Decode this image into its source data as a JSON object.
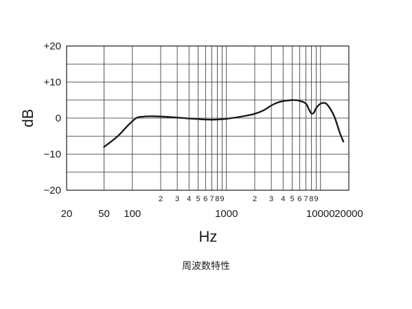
{
  "chart_data": {
    "type": "line",
    "x_scale": "log",
    "xlim": [
      20,
      20000
    ],
    "ylim": [
      -20,
      20
    ],
    "ylabel": "dB",
    "xlabel": "Hz",
    "caption": "周波数特性",
    "grid": true,
    "y_ticks": [
      {
        "value": 20,
        "label": "+20"
      },
      {
        "value": 10,
        "label": "+10"
      },
      {
        "value": 0,
        "label": "0"
      },
      {
        "value": -10,
        "label": "−10"
      },
      {
        "value": -20,
        "label": "−20"
      }
    ],
    "x_major_ticks": [
      {
        "value": 20,
        "label": "20"
      },
      {
        "value": 50,
        "label": "50"
      },
      {
        "value": 100,
        "label": "100"
      },
      {
        "value": 1000,
        "label": "1000"
      },
      {
        "value": 10000,
        "label": "10000"
      },
      {
        "value": 20000,
        "label": "20000"
      }
    ],
    "x_minor_ticks": [
      {
        "value": 200,
        "label": "2"
      },
      {
        "value": 300,
        "label": "3"
      },
      {
        "value": 400,
        "label": "4"
      },
      {
        "value": 500,
        "label": "5"
      },
      {
        "value": 600,
        "label": "6"
      },
      {
        "value": 700,
        "label": "7"
      },
      {
        "value": 800,
        "label": "8"
      },
      {
        "value": 900,
        "label": "9"
      },
      {
        "value": 2000,
        "label": "2"
      },
      {
        "value": 3000,
        "label": "3"
      },
      {
        "value": 4000,
        "label": "4"
      },
      {
        "value": 5000,
        "label": "5"
      },
      {
        "value": 6000,
        "label": "6"
      },
      {
        "value": 7000,
        "label": "7"
      },
      {
        "value": 8000,
        "label": "8"
      },
      {
        "value": 9000,
        "label": "9"
      }
    ],
    "grid_x_values": [
      50,
      100,
      200,
      300,
      400,
      500,
      600,
      700,
      800,
      900,
      1000,
      2000,
      3000,
      4000,
      5000,
      6000,
      7000,
      8000,
      9000,
      10000
    ],
    "grid_y_values": [
      -15,
      -10,
      -5,
      0,
      5,
      10,
      15
    ],
    "series": [
      {
        "color": "#1a1a1a",
        "points": [
          [
            50,
            -8
          ],
          [
            70,
            -5
          ],
          [
            90,
            -2
          ],
          [
            110,
            0
          ],
          [
            130,
            0.4
          ],
          [
            170,
            0.5
          ],
          [
            250,
            0.3
          ],
          [
            400,
            -0.1
          ],
          [
            600,
            -0.4
          ],
          [
            800,
            -0.4
          ],
          [
            1000,
            -0.2
          ],
          [
            1500,
            0.5
          ],
          [
            2000,
            1.2
          ],
          [
            2500,
            2.2
          ],
          [
            3000,
            3.5
          ],
          [
            3500,
            4.3
          ],
          [
            4000,
            4.7
          ],
          [
            5000,
            5.0
          ],
          [
            6000,
            4.8
          ],
          [
            7000,
            4.0
          ],
          [
            7500,
            2.5
          ],
          [
            8000,
            1.3
          ],
          [
            8500,
            1.5
          ],
          [
            9000,
            2.8
          ],
          [
            10000,
            4.0
          ],
          [
            11000,
            4.2
          ],
          [
            12000,
            3.5
          ],
          [
            14000,
            0.5
          ],
          [
            16000,
            -4
          ],
          [
            17500,
            -6.5
          ]
        ]
      }
    ]
  }
}
